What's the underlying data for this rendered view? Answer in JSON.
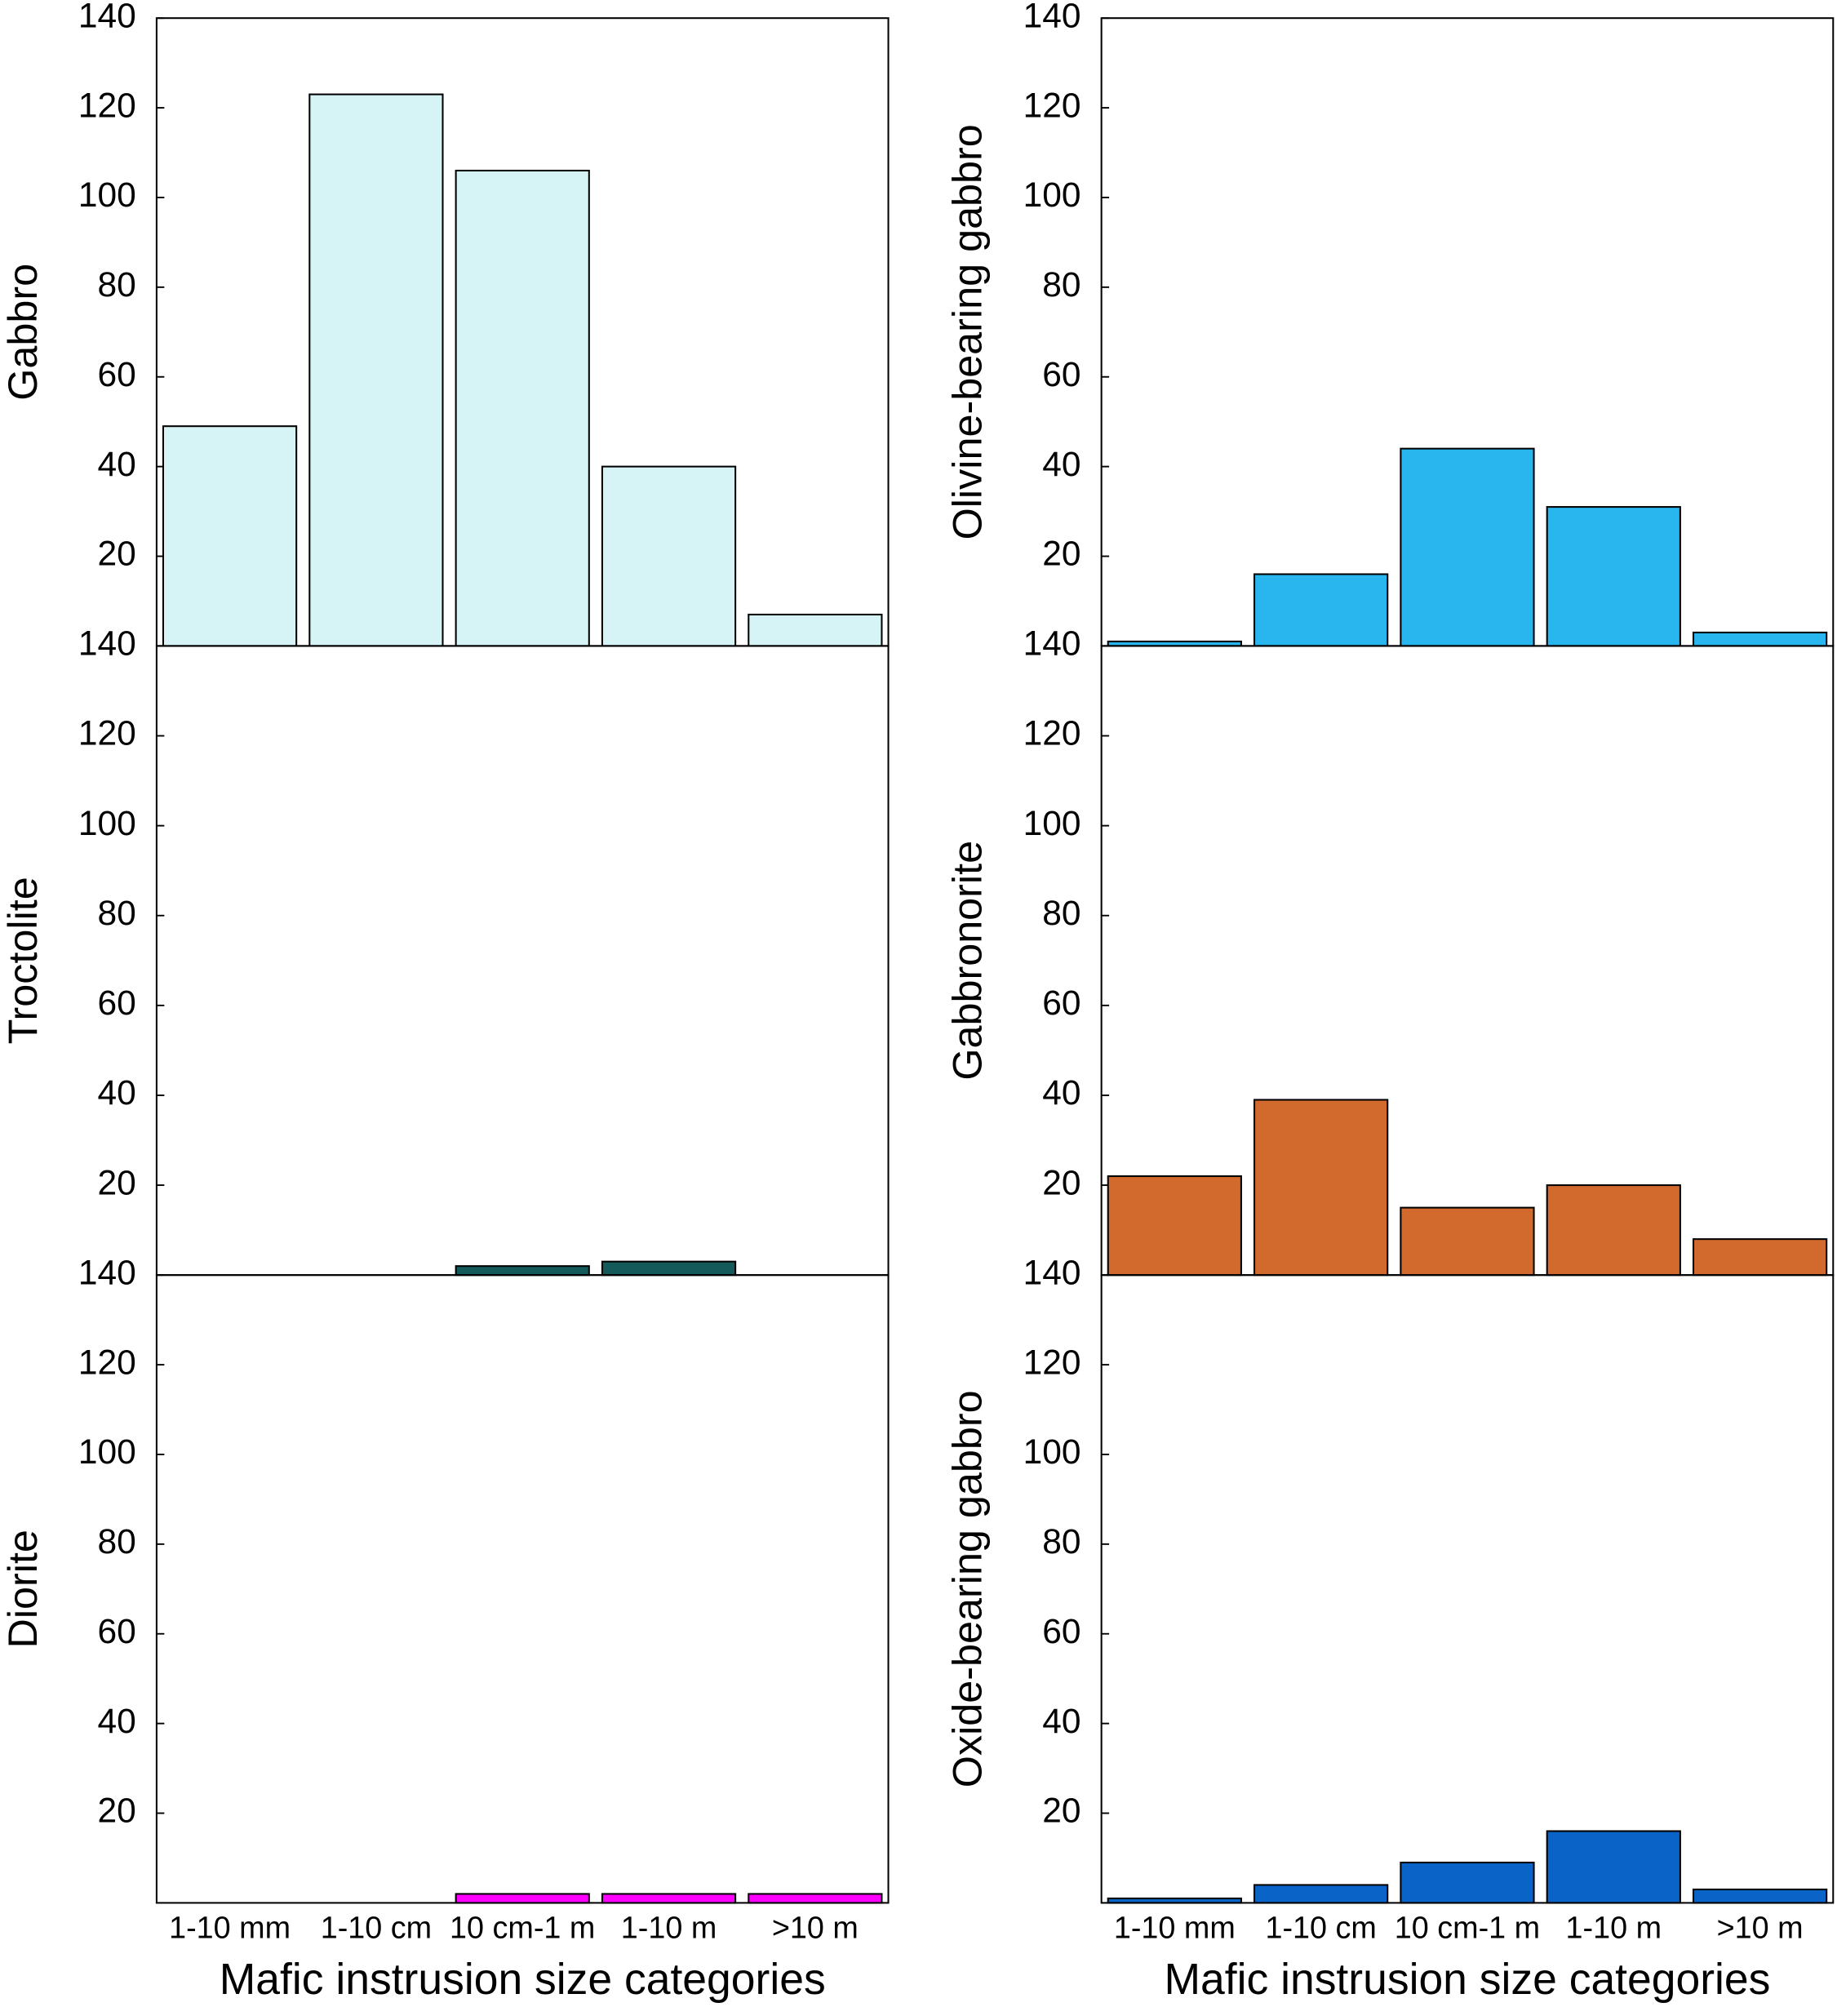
{
  "chart_data": [
    {
      "type": "bar",
      "ylabel": "Gabbro",
      "color": "#d6f4f5",
      "values": [
        49,
        123,
        106,
        40,
        7
      ],
      "ylim": [
        0,
        140
      ],
      "yticks": [
        20,
        40,
        60,
        80,
        100,
        120,
        140
      ]
    },
    {
      "type": "bar",
      "ylabel": "Olivine-bearing gabbro",
      "color": "#29b6ee",
      "values": [
        1,
        16,
        44,
        31,
        3
      ],
      "ylim": [
        0,
        140
      ],
      "yticks": [
        20,
        40,
        60,
        80,
        100,
        120,
        140
      ]
    },
    {
      "type": "bar",
      "ylabel": "Troctolite",
      "color": "#155a5a",
      "values": [
        0,
        0,
        2,
        3,
        0
      ],
      "ylim": [
        0,
        140
      ],
      "yticks": [
        20,
        40,
        60,
        80,
        100,
        120,
        140
      ]
    },
    {
      "type": "bar",
      "ylabel": "Gabbronorite",
      "color": "#d2692d",
      "values": [
        22,
        39,
        15,
        20,
        8
      ],
      "ylim": [
        0,
        140
      ],
      "yticks": [
        20,
        40,
        60,
        80,
        100,
        120,
        140
      ]
    },
    {
      "type": "bar",
      "ylabel": "Diorite",
      "color": "#ff00ff",
      "values": [
        0,
        0,
        2,
        2,
        2
      ],
      "ylim": [
        0,
        140
      ],
      "yticks": [
        20,
        40,
        60,
        80,
        100,
        120,
        140
      ],
      "categories": [
        "1-10 mm",
        "1-10 cm",
        "10 cm-1 m",
        "1-10 m",
        ">10 m"
      ],
      "xlabel": "Mafic instrusion size categories"
    },
    {
      "type": "bar",
      "ylabel": "Oxide-bearing gabbro",
      "color": "#0a64c8",
      "values": [
        1,
        4,
        9,
        16,
        3
      ],
      "ylim": [
        0,
        140
      ],
      "yticks": [
        20,
        40,
        60,
        80,
        100,
        120,
        140
      ],
      "categories": [
        "1-10 mm",
        "1-10 cm",
        "10 cm-1 m",
        "1-10 m",
        ">10 m"
      ],
      "xlabel": "Mafic instrusion size categories"
    }
  ]
}
